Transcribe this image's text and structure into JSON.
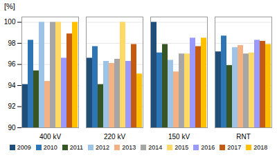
{
  "chart_data": {
    "type": "bar",
    "title": "[%]",
    "categories": [
      "400 kV",
      "220 kV",
      "150 kV",
      "RNT"
    ],
    "series": [
      {
        "name": "2009",
        "color": "#1f4e79",
        "values": [
          94.1,
          96.6,
          100.0,
          97.2
        ]
      },
      {
        "name": "2010",
        "color": "#2e75b6",
        "values": [
          98.3,
          97.7,
          97.1,
          98.7
        ]
      },
      {
        "name": "2011",
        "color": "#375623",
        "values": [
          95.4,
          94.1,
          97.9,
          95.9
        ]
      },
      {
        "name": "2012",
        "color": "#9dc3e6",
        "values": [
          100.0,
          96.3,
          96.4,
          97.6
        ]
      },
      {
        "name": "2013",
        "color": "#f4b183",
        "values": [
          94.4,
          96.1,
          95.3,
          97.8
        ]
      },
      {
        "name": "2014",
        "color": "#a6a6a6",
        "values": [
          100.0,
          96.5,
          97.0,
          97.0
        ]
      },
      {
        "name": "2015",
        "color": "#ffd966",
        "values": [
          100.0,
          100.0,
          97.0,
          97.1
        ]
      },
      {
        "name": "2016",
        "color": "#9999ff",
        "values": [
          96.6,
          96.3,
          98.5,
          98.3
        ]
      },
      {
        "name": "2017",
        "color": "#c55a11",
        "values": [
          98.9,
          97.9,
          97.7,
          98.2
        ]
      },
      {
        "name": "2018",
        "color": "#ffc000",
        "values": [
          100.0,
          95.1,
          98.5,
          97.9
        ]
      }
    ],
    "ylim": [
      90,
      100.5
    ],
    "yticks": [
      90,
      92,
      94,
      96,
      98,
      100
    ],
    "grid": true,
    "legend": "bottom"
  }
}
